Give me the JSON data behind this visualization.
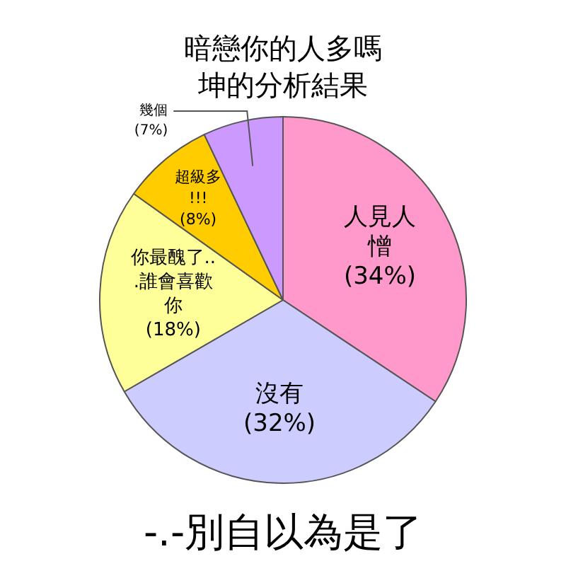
{
  "chart_data": {
    "type": "pie",
    "title": "暗戀你的人多嗎",
    "subtitle": "坤的分析結果",
    "categories": [
      "人見人憎",
      "沒有",
      "你最醜了...誰會喜歡你",
      "超級多!!!",
      "幾個"
    ],
    "values": [
      34,
      32,
      18,
      8,
      7
    ],
    "value_labels": [
      "(34%)",
      "(32%)",
      "(18%)",
      "(8%)",
      "(7%)"
    ],
    "colors": [
      "#ff99cc",
      "#ccccff",
      "#ffff99",
      "#ffcc00",
      "#cc99ff"
    ],
    "annotations": [
      "-.-別自以為是了"
    ],
    "legend": false
  }
}
